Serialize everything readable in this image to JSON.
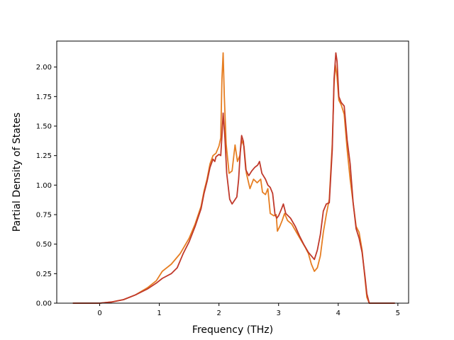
{
  "chart_data": {
    "type": "line",
    "title": "",
    "xlabel": "Frequency (THz)",
    "ylabel": "Partial Density of States",
    "xlim": [
      -0.72,
      5.18
    ],
    "ylim": [
      0.0,
      2.22
    ],
    "xticks": [
      0,
      1,
      2,
      3,
      4,
      5
    ],
    "yticks": [
      0.0,
      0.25,
      0.5,
      0.75,
      1.0,
      1.25,
      1.5,
      1.75,
      2.0
    ],
    "ytick_labels": [
      "0.00",
      "0.25",
      "0.50",
      "0.75",
      "1.00",
      "1.25",
      "1.50",
      "1.75",
      "2.00"
    ],
    "grid": false,
    "series": [
      {
        "color": "#e67e22",
        "points": [
          [
            -0.45,
            0.0
          ],
          [
            0.0,
            0.0
          ],
          [
            0.2,
            0.01
          ],
          [
            0.4,
            0.03
          ],
          [
            0.6,
            0.07
          ],
          [
            0.8,
            0.13
          ],
          [
            0.95,
            0.19
          ],
          [
            1.05,
            0.27
          ],
          [
            1.2,
            0.33
          ],
          [
            1.35,
            0.42
          ],
          [
            1.5,
            0.55
          ],
          [
            1.6,
            0.67
          ],
          [
            1.7,
            0.82
          ],
          [
            1.75,
            0.95
          ],
          [
            1.8,
            1.05
          ],
          [
            1.85,
            1.18
          ],
          [
            1.9,
            1.25
          ],
          [
            1.95,
            1.27
          ],
          [
            2.0,
            1.33
          ],
          [
            2.03,
            1.4
          ],
          [
            2.05,
            1.9
          ],
          [
            2.07,
            2.12
          ],
          [
            2.09,
            1.75
          ],
          [
            2.12,
            1.35
          ],
          [
            2.17,
            1.1
          ],
          [
            2.22,
            1.12
          ],
          [
            2.27,
            1.34
          ],
          [
            2.31,
            1.2
          ],
          [
            2.35,
            1.25
          ],
          [
            2.38,
            1.38
          ],
          [
            2.42,
            1.33
          ],
          [
            2.46,
            1.1
          ],
          [
            2.52,
            0.97
          ],
          [
            2.58,
            1.05
          ],
          [
            2.64,
            1.02
          ],
          [
            2.7,
            1.05
          ],
          [
            2.73,
            0.94
          ],
          [
            2.78,
            0.92
          ],
          [
            2.82,
            0.97
          ],
          [
            2.86,
            0.76
          ],
          [
            2.92,
            0.74
          ],
          [
            2.96,
            0.75
          ],
          [
            2.98,
            0.61
          ],
          [
            3.02,
            0.65
          ],
          [
            3.06,
            0.7
          ],
          [
            3.1,
            0.76
          ],
          [
            3.15,
            0.7
          ],
          [
            3.22,
            0.67
          ],
          [
            3.3,
            0.6
          ],
          [
            3.38,
            0.53
          ],
          [
            3.45,
            0.47
          ],
          [
            3.5,
            0.42
          ],
          [
            3.55,
            0.33
          ],
          [
            3.6,
            0.27
          ],
          [
            3.65,
            0.3
          ],
          [
            3.7,
            0.4
          ],
          [
            3.75,
            0.6
          ],
          [
            3.8,
            0.75
          ],
          [
            3.85,
            0.88
          ],
          [
            3.9,
            1.35
          ],
          [
            3.93,
            1.85
          ],
          [
            3.95,
            2.02
          ],
          [
            3.98,
            1.92
          ],
          [
            4.01,
            1.72
          ],
          [
            4.05,
            1.68
          ],
          [
            4.1,
            1.6
          ],
          [
            4.15,
            1.3
          ],
          [
            4.2,
            1.05
          ],
          [
            4.25,
            0.85
          ],
          [
            4.3,
            0.65
          ],
          [
            4.35,
            0.6
          ],
          [
            4.4,
            0.45
          ],
          [
            4.45,
            0.2
          ],
          [
            4.48,
            0.05
          ],
          [
            4.52,
            0.0
          ],
          [
            4.95,
            0.0
          ]
        ]
      },
      {
        "color": "#c0392b",
        "points": [
          [
            -0.45,
            0.0
          ],
          [
            0.0,
            0.0
          ],
          [
            0.2,
            0.01
          ],
          [
            0.4,
            0.03
          ],
          [
            0.6,
            0.07
          ],
          [
            0.8,
            0.12
          ],
          [
            0.95,
            0.17
          ],
          [
            1.05,
            0.21
          ],
          [
            1.2,
            0.25
          ],
          [
            1.3,
            0.3
          ],
          [
            1.4,
            0.42
          ],
          [
            1.5,
            0.52
          ],
          [
            1.6,
            0.65
          ],
          [
            1.7,
            0.8
          ],
          [
            1.75,
            0.93
          ],
          [
            1.8,
            1.03
          ],
          [
            1.85,
            1.15
          ],
          [
            1.9,
            1.22
          ],
          [
            1.93,
            1.2
          ],
          [
            1.95,
            1.24
          ],
          [
            2.0,
            1.26
          ],
          [
            2.03,
            1.25
          ],
          [
            2.05,
            1.42
          ],
          [
            2.07,
            1.61
          ],
          [
            2.1,
            1.4
          ],
          [
            2.13,
            1.1
          ],
          [
            2.18,
            0.88
          ],
          [
            2.22,
            0.84
          ],
          [
            2.26,
            0.87
          ],
          [
            2.3,
            0.9
          ],
          [
            2.33,
            1.05
          ],
          [
            2.36,
            1.3
          ],
          [
            2.38,
            1.42
          ],
          [
            2.41,
            1.37
          ],
          [
            2.45,
            1.13
          ],
          [
            2.5,
            1.08
          ],
          [
            2.55,
            1.12
          ],
          [
            2.6,
            1.15
          ],
          [
            2.65,
            1.17
          ],
          [
            2.68,
            1.2
          ],
          [
            2.72,
            1.1
          ],
          [
            2.78,
            1.05
          ],
          [
            2.82,
            1.0
          ],
          [
            2.86,
            0.98
          ],
          [
            2.9,
            0.93
          ],
          [
            2.94,
            0.75
          ],
          [
            2.97,
            0.72
          ],
          [
            3.0,
            0.74
          ],
          [
            3.05,
            0.8
          ],
          [
            3.08,
            0.84
          ],
          [
            3.12,
            0.76
          ],
          [
            3.2,
            0.72
          ],
          [
            3.28,
            0.65
          ],
          [
            3.35,
            0.57
          ],
          [
            3.42,
            0.5
          ],
          [
            3.5,
            0.43
          ],
          [
            3.55,
            0.4
          ],
          [
            3.6,
            0.37
          ],
          [
            3.65,
            0.45
          ],
          [
            3.7,
            0.58
          ],
          [
            3.75,
            0.78
          ],
          [
            3.8,
            0.84
          ],
          [
            3.85,
            0.85
          ],
          [
            3.9,
            1.3
          ],
          [
            3.93,
            1.9
          ],
          [
            3.96,
            2.12
          ],
          [
            3.98,
            2.05
          ],
          [
            4.01,
            1.75
          ],
          [
            4.05,
            1.7
          ],
          [
            4.1,
            1.67
          ],
          [
            4.15,
            1.38
          ],
          [
            4.2,
            1.18
          ],
          [
            4.25,
            0.85
          ],
          [
            4.3,
            0.63
          ],
          [
            4.35,
            0.55
          ],
          [
            4.4,
            0.43
          ],
          [
            4.45,
            0.22
          ],
          [
            4.48,
            0.08
          ],
          [
            4.52,
            0.0
          ],
          [
            4.95,
            0.0
          ]
        ]
      }
    ]
  }
}
